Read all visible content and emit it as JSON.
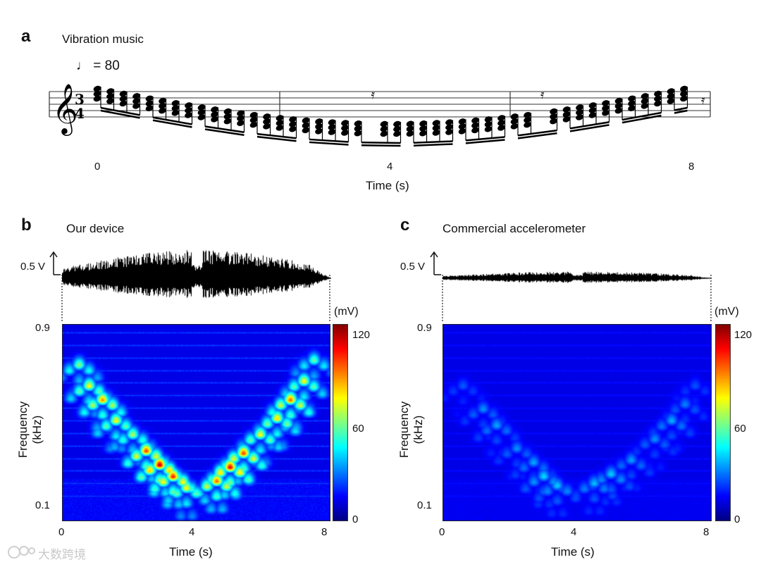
{
  "panel_a": {
    "letter": "a",
    "title": "Vibration music",
    "tempo": "♩ = 80",
    "time_signature": [
      "3",
      "4"
    ],
    "time_ticks": [
      "0",
      "4",
      "8"
    ],
    "xlabel": "Time (s)"
  },
  "panel_b": {
    "letter": "b",
    "title": "Our device",
    "amp_scale": "0.5 V"
  },
  "panel_c": {
    "letter": "c",
    "title": "Commercial accelerometer",
    "amp_scale": "0.5 V"
  },
  "colorbar": {
    "unit": "(mV)",
    "ticks": [
      "120",
      "60",
      "0"
    ]
  },
  "watermark": "大数跨境",
  "chart_data": [
    {
      "type": "heatmap",
      "title": "Our device",
      "xlabel": "Time (s)",
      "ylabel": "Frequency (kHz)",
      "xlim": [
        0,
        8
      ],
      "ylim": [
        0.05,
        0.9
      ],
      "xticks": [
        "0",
        "4",
        "8"
      ],
      "yticks": [
        "0.9",
        "0.1"
      ],
      "colorbar": {
        "label": "(mV)",
        "range": [
          0,
          120
        ],
        "ticks": [
          0,
          60,
          120
        ]
      },
      "peak_intensity_mV": 120,
      "notes": [
        {
          "t": 0.5,
          "f": 0.72,
          "mv": 55
        },
        {
          "t": 0.8,
          "f": 0.63,
          "mv": 70
        },
        {
          "t": 1.2,
          "f": 0.57,
          "mv": 85
        },
        {
          "t": 1.6,
          "f": 0.48,
          "mv": 70
        },
        {
          "t": 2.1,
          "f": 0.42,
          "mv": 60
        },
        {
          "t": 2.5,
          "f": 0.35,
          "mv": 95
        },
        {
          "t": 2.9,
          "f": 0.29,
          "mv": 110
        },
        {
          "t": 3.3,
          "f": 0.24,
          "mv": 100
        },
        {
          "t": 3.7,
          "f": 0.19,
          "mv": 70
        },
        {
          "t": 4.6,
          "f": 0.22,
          "mv": 90
        },
        {
          "t": 5.0,
          "f": 0.28,
          "mv": 105
        },
        {
          "t": 5.4,
          "f": 0.34,
          "mv": 95
        },
        {
          "t": 5.9,
          "f": 0.42,
          "mv": 70
        },
        {
          "t": 6.4,
          "f": 0.49,
          "mv": 75
        },
        {
          "t": 6.8,
          "f": 0.57,
          "mv": 90
        },
        {
          "t": 7.2,
          "f": 0.65,
          "mv": 70
        },
        {
          "t": 7.5,
          "f": 0.74,
          "mv": 50
        }
      ]
    },
    {
      "type": "heatmap",
      "title": "Commercial accelerometer",
      "xlabel": "Time (s)",
      "ylabel": "Frequency (kHz)",
      "xlim": [
        0,
        8
      ],
      "ylim": [
        0.05,
        0.9
      ],
      "xticks": [
        "0",
        "4",
        "8"
      ],
      "yticks": [
        "0.9",
        "0.1"
      ],
      "colorbar": {
        "label": "(mV)",
        "range": [
          0,
          120
        ],
        "ticks": [
          0,
          60,
          120
        ]
      },
      "peak_intensity_mV": 35,
      "notes": [
        {
          "t": 0.6,
          "f": 0.63,
          "mv": 15
        },
        {
          "t": 1.2,
          "f": 0.53,
          "mv": 22
        },
        {
          "t": 1.6,
          "f": 0.46,
          "mv": 25
        },
        {
          "t": 2.2,
          "f": 0.36,
          "mv": 22
        },
        {
          "t": 2.7,
          "f": 0.3,
          "mv": 25
        },
        {
          "t": 3.0,
          "f": 0.24,
          "mv": 32
        },
        {
          "t": 3.4,
          "f": 0.2,
          "mv": 30
        },
        {
          "t": 4.5,
          "f": 0.21,
          "mv": 28
        },
        {
          "t": 5.0,
          "f": 0.25,
          "mv": 30
        },
        {
          "t": 5.6,
          "f": 0.31,
          "mv": 24
        },
        {
          "t": 6.3,
          "f": 0.4,
          "mv": 22
        },
        {
          "t": 6.8,
          "f": 0.48,
          "mv": 26
        },
        {
          "t": 7.2,
          "f": 0.55,
          "mv": 20
        },
        {
          "t": 7.5,
          "f": 0.63,
          "mv": 14
        }
      ]
    }
  ]
}
